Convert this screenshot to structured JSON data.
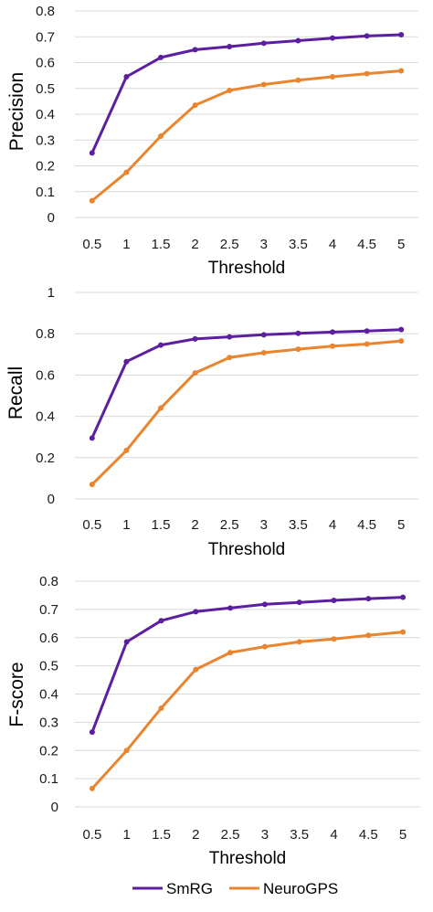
{
  "colors": {
    "SmRG": "#5b1fa0",
    "NeuroGPS": "#e8852e",
    "grid": "#d9d9d9"
  },
  "legend": {
    "placement": "bottom",
    "items": [
      "SmRG",
      "NeuroGPS"
    ]
  },
  "chart_data": [
    {
      "type": "line",
      "xlabel": "Threshold",
      "ylabel": "Precision",
      "x": [
        0.5,
        1,
        1.5,
        2,
        2.5,
        3,
        3.5,
        4,
        4.5,
        5
      ],
      "x_ticks": [
        "0.5",
        "1",
        "1.5",
        "2",
        "2.5",
        "3",
        "3.5",
        "4",
        "4.5",
        "5"
      ],
      "ylim": [
        0,
        0.8
      ],
      "y_ticks": [
        "0",
        "0.1",
        "0.2",
        "0.3",
        "0.4",
        "0.5",
        "0.6",
        "0.7",
        "0.8"
      ],
      "grid": true,
      "series": [
        {
          "name": "SmRG",
          "values": [
            0.25,
            0.545,
            0.62,
            0.65,
            0.662,
            0.675,
            0.685,
            0.695,
            0.703,
            0.708
          ]
        },
        {
          "name": "NeuroGPS",
          "values": [
            0.065,
            0.175,
            0.315,
            0.435,
            0.492,
            0.515,
            0.532,
            0.545,
            0.557,
            0.568
          ]
        }
      ]
    },
    {
      "type": "line",
      "xlabel": "Threshold",
      "ylabel": "Recall",
      "x": [
        0.5,
        1,
        1.5,
        2,
        2.5,
        3,
        3.5,
        4,
        4.5,
        5
      ],
      "x_ticks": [
        "0.5",
        "1",
        "1.5",
        "2",
        "2.5",
        "3",
        "3.5",
        "4",
        "4.5",
        "5"
      ],
      "ylim": [
        0,
        1
      ],
      "y_ticks": [
        "0",
        "0.2",
        "0.4",
        "0.6",
        "0.8",
        "1"
      ],
      "grid": true,
      "series": [
        {
          "name": "SmRG",
          "values": [
            0.295,
            0.665,
            0.745,
            0.775,
            0.785,
            0.795,
            0.802,
            0.808,
            0.813,
            0.82
          ]
        },
        {
          "name": "NeuroGPS",
          "values": [
            0.07,
            0.235,
            0.44,
            0.61,
            0.685,
            0.708,
            0.725,
            0.74,
            0.75,
            0.765
          ]
        }
      ]
    },
    {
      "type": "line",
      "xlabel": "Threshold",
      "ylabel": "F-score",
      "x": [
        0.5,
        1,
        1.5,
        2,
        2.5,
        3,
        3.5,
        4,
        4.5,
        5
      ],
      "x_ticks": [
        "0.5",
        "1",
        "1.5",
        "2",
        "2.5",
        "3",
        "3.5",
        "4",
        "4.5",
        "5"
      ],
      "ylim": [
        0,
        0.8
      ],
      "y_ticks": [
        "0",
        "0.1",
        "0.2",
        "0.3",
        "0.4",
        "0.5",
        "0.6",
        "0.7",
        "0.8"
      ],
      "grid": true,
      "series": [
        {
          "name": "SmRG",
          "values": [
            0.265,
            0.585,
            0.66,
            0.692,
            0.705,
            0.718,
            0.725,
            0.732,
            0.738,
            0.743
          ]
        },
        {
          "name": "NeuroGPS",
          "values": [
            0.065,
            0.2,
            0.35,
            0.487,
            0.547,
            0.568,
            0.585,
            0.595,
            0.608,
            0.62
          ]
        }
      ]
    }
  ]
}
